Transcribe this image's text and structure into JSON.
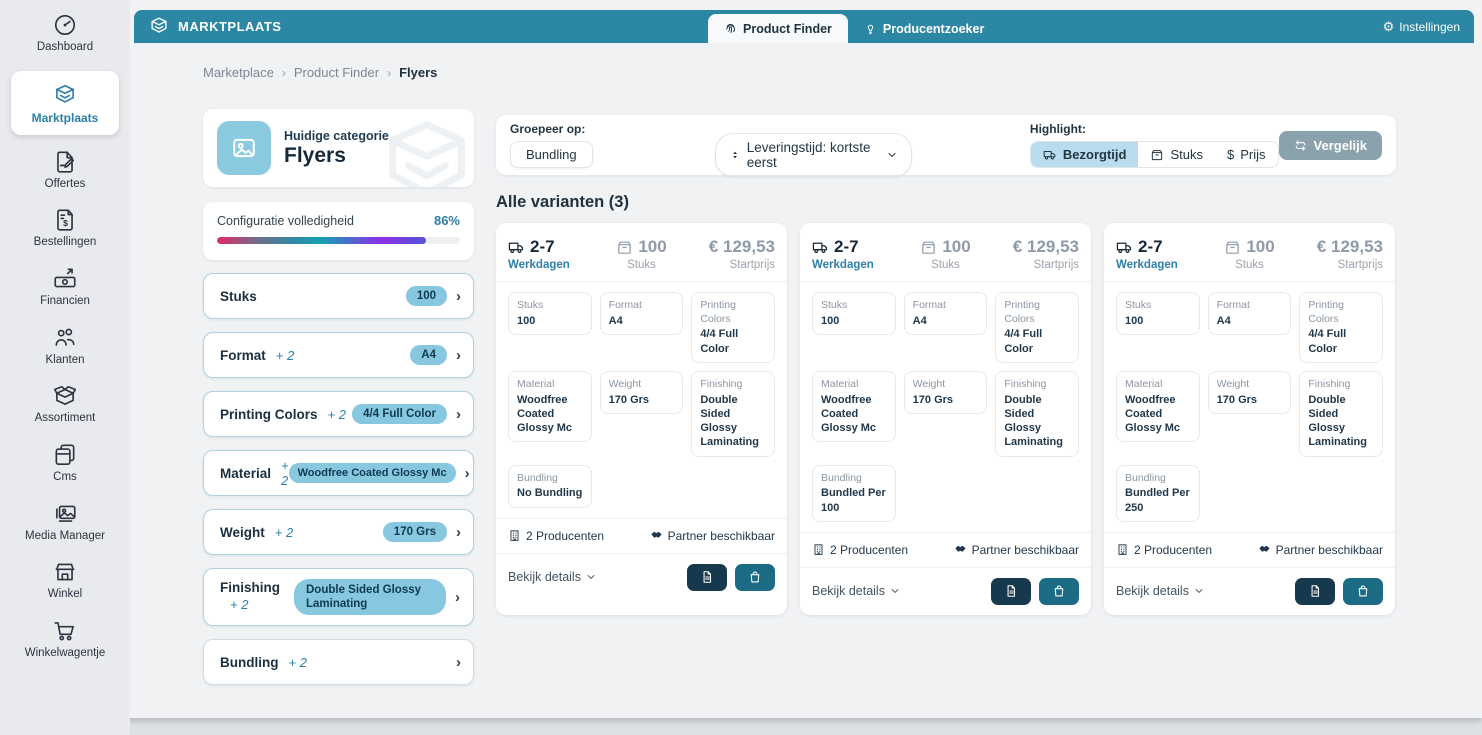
{
  "header": {
    "brand": "MARKTPLAATS",
    "tabs": [
      {
        "label": "Product Finder",
        "active": true
      },
      {
        "label": "Producentzoeker",
        "active": false
      }
    ],
    "settings_label": "Instellingen"
  },
  "sidebar": {
    "items": [
      {
        "label": "Dashboard"
      },
      {
        "label": "Marktplaats",
        "active": true
      },
      {
        "label": "Offertes"
      },
      {
        "label": "Bestellingen"
      },
      {
        "label": "Financien"
      },
      {
        "label": "Klanten"
      },
      {
        "label": "Assortiment"
      },
      {
        "label": "Cms"
      },
      {
        "label": "Media Manager"
      },
      {
        "label": "Winkel"
      },
      {
        "label": "Winkelwagentje"
      }
    ]
  },
  "breadcrumb": {
    "items": [
      "Marketplace",
      "Product Finder",
      "Flyers"
    ]
  },
  "category_panel": {
    "subtitle": "Huidige categorie",
    "title": "Flyers"
  },
  "config_panel": {
    "label": "Configuratie volledigheid",
    "percent": "86%"
  },
  "filters": [
    {
      "label": "Stuks",
      "extra": "",
      "value": "100"
    },
    {
      "label": "Format",
      "extra": "+ 2",
      "value": "A4"
    },
    {
      "label": "Printing Colors",
      "extra": "+ 2",
      "value": "4/4 Full Color"
    },
    {
      "label": "Material",
      "extra": "+ 2",
      "value": "Woodfree Coated Glossy Mc"
    },
    {
      "label": "Weight",
      "extra": "+ 2",
      "value": "170 Grs"
    },
    {
      "label": "Finishing",
      "extra": "+ 2",
      "value": "Double Sided Glossy Laminating"
    },
    {
      "label": "Bundling",
      "extra": "+ 2",
      "value": ""
    }
  ],
  "toolbar": {
    "group_label": "Groepeer op:",
    "group_value": "Bundling",
    "sort_value": "Leveringstijd: kortste eerst",
    "highlight_label": "Highlight:",
    "highlight_options": [
      {
        "label": "Bezorgtijd",
        "active": true
      },
      {
        "label": "Stuks",
        "active": false
      },
      {
        "label": "Prijs",
        "active": false
      }
    ],
    "compare_label": "Vergelijk"
  },
  "variants": {
    "heading": "Alle varianten (3)",
    "cards": [
      {
        "delivery": "2-7",
        "delivery_unit": "Werkdagen",
        "quantity": "100",
        "quantity_unit": "Stuks",
        "price": "€ 129,53",
        "price_unit": "Startprijs",
        "specs": [
          {
            "label": "Stuks",
            "value": "100"
          },
          {
            "label": "Format",
            "value": "A4"
          },
          {
            "label": "Printing Colors",
            "value": "4/4 Full Color"
          },
          {
            "label": "Material",
            "value": "Woodfree Coated Glossy Mc"
          },
          {
            "label": "Weight",
            "value": "170 Grs"
          },
          {
            "label": "Finishing",
            "value": "Double Sided Glossy Laminating"
          },
          {
            "label": "Bundling",
            "value": "No Bundling"
          }
        ],
        "producers": "2 Producenten",
        "partner": "Partner beschikbaar",
        "details_label": "Bekijk details"
      },
      {
        "delivery": "2-7",
        "delivery_unit": "Werkdagen",
        "quantity": "100",
        "quantity_unit": "Stuks",
        "price": "€ 129,53",
        "price_unit": "Startprijs",
        "specs": [
          {
            "label": "Stuks",
            "value": "100"
          },
          {
            "label": "Format",
            "value": "A4"
          },
          {
            "label": "Printing Colors",
            "value": "4/4 Full Color"
          },
          {
            "label": "Material",
            "value": "Woodfree Coated Glossy Mc"
          },
          {
            "label": "Weight",
            "value": "170 Grs"
          },
          {
            "label": "Finishing",
            "value": "Double Sided Glossy Laminating"
          },
          {
            "label": "Bundling",
            "value": "Bundled Per 100"
          }
        ],
        "producers": "2 Producenten",
        "partner": "Partner beschikbaar",
        "details_label": "Bekijk details"
      },
      {
        "delivery": "2-7",
        "delivery_unit": "Werkdagen",
        "quantity": "100",
        "quantity_unit": "Stuks",
        "price": "€ 129,53",
        "price_unit": "Startprijs",
        "specs": [
          {
            "label": "Stuks",
            "value": "100"
          },
          {
            "label": "Format",
            "value": "A4"
          },
          {
            "label": "Printing Colors",
            "value": "4/4 Full Color"
          },
          {
            "label": "Material",
            "value": "Woodfree Coated Glossy Mc"
          },
          {
            "label": "Weight",
            "value": "170 Grs"
          },
          {
            "label": "Finishing",
            "value": "Double Sided Glossy Laminating"
          },
          {
            "label": "Bundling",
            "value": "Bundled Per 250"
          }
        ],
        "producers": "2 Producenten",
        "partner": "Partner beschikbaar",
        "details_label": "Bekijk details"
      }
    ]
  },
  "colors": {
    "header_teal": "#2b87a3",
    "accent_blue": "#2d7fa8",
    "pill_blue": "#87c7e0",
    "dark_navy": "#16293a",
    "highlight_active_bg": "#b9ddee",
    "compare_button": "#8aa2ac",
    "doc_button": "#16394e",
    "bag_button": "#1b6b84",
    "progress_gradient": [
      "#e02a68",
      "#2e8ca6",
      "#8a30e8",
      "#5752d6"
    ]
  }
}
